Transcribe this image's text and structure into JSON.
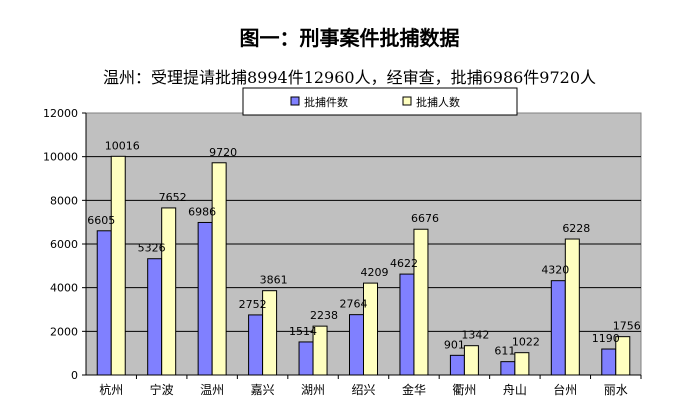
{
  "title": "图一：刑事案件批捕数据",
  "subtitle": "温州：受理提请批捕8994件12960人，经审查，批捕6986件9720人",
  "colors": {
    "series_cases": "#8080ff",
    "series_people": "#ffffc0",
    "plot_bg": "#c0c0c0",
    "bar_stroke": "#000000"
  },
  "chart_data": {
    "type": "bar",
    "categories": [
      "杭州",
      "宁波",
      "温州",
      "嘉兴",
      "湖州",
      "绍兴",
      "金华",
      "衢州",
      "舟山",
      "台州",
      "丽水"
    ],
    "series": [
      {
        "name": "批捕件数",
        "values": [
          6605,
          5326,
          6986,
          2752,
          1514,
          2764,
          4622,
          901,
          611,
          4320,
          1190
        ]
      },
      {
        "name": "批捕人数",
        "values": [
          10016,
          7652,
          9720,
          3861,
          2238,
          4209,
          6676,
          1342,
          1022,
          6228,
          1756
        ]
      }
    ],
    "ylim": [
      0,
      12000
    ],
    "yticks": [
      0,
      2000,
      4000,
      6000,
      8000,
      10000,
      12000
    ],
    "grid": true,
    "legend_position": "top-center"
  }
}
